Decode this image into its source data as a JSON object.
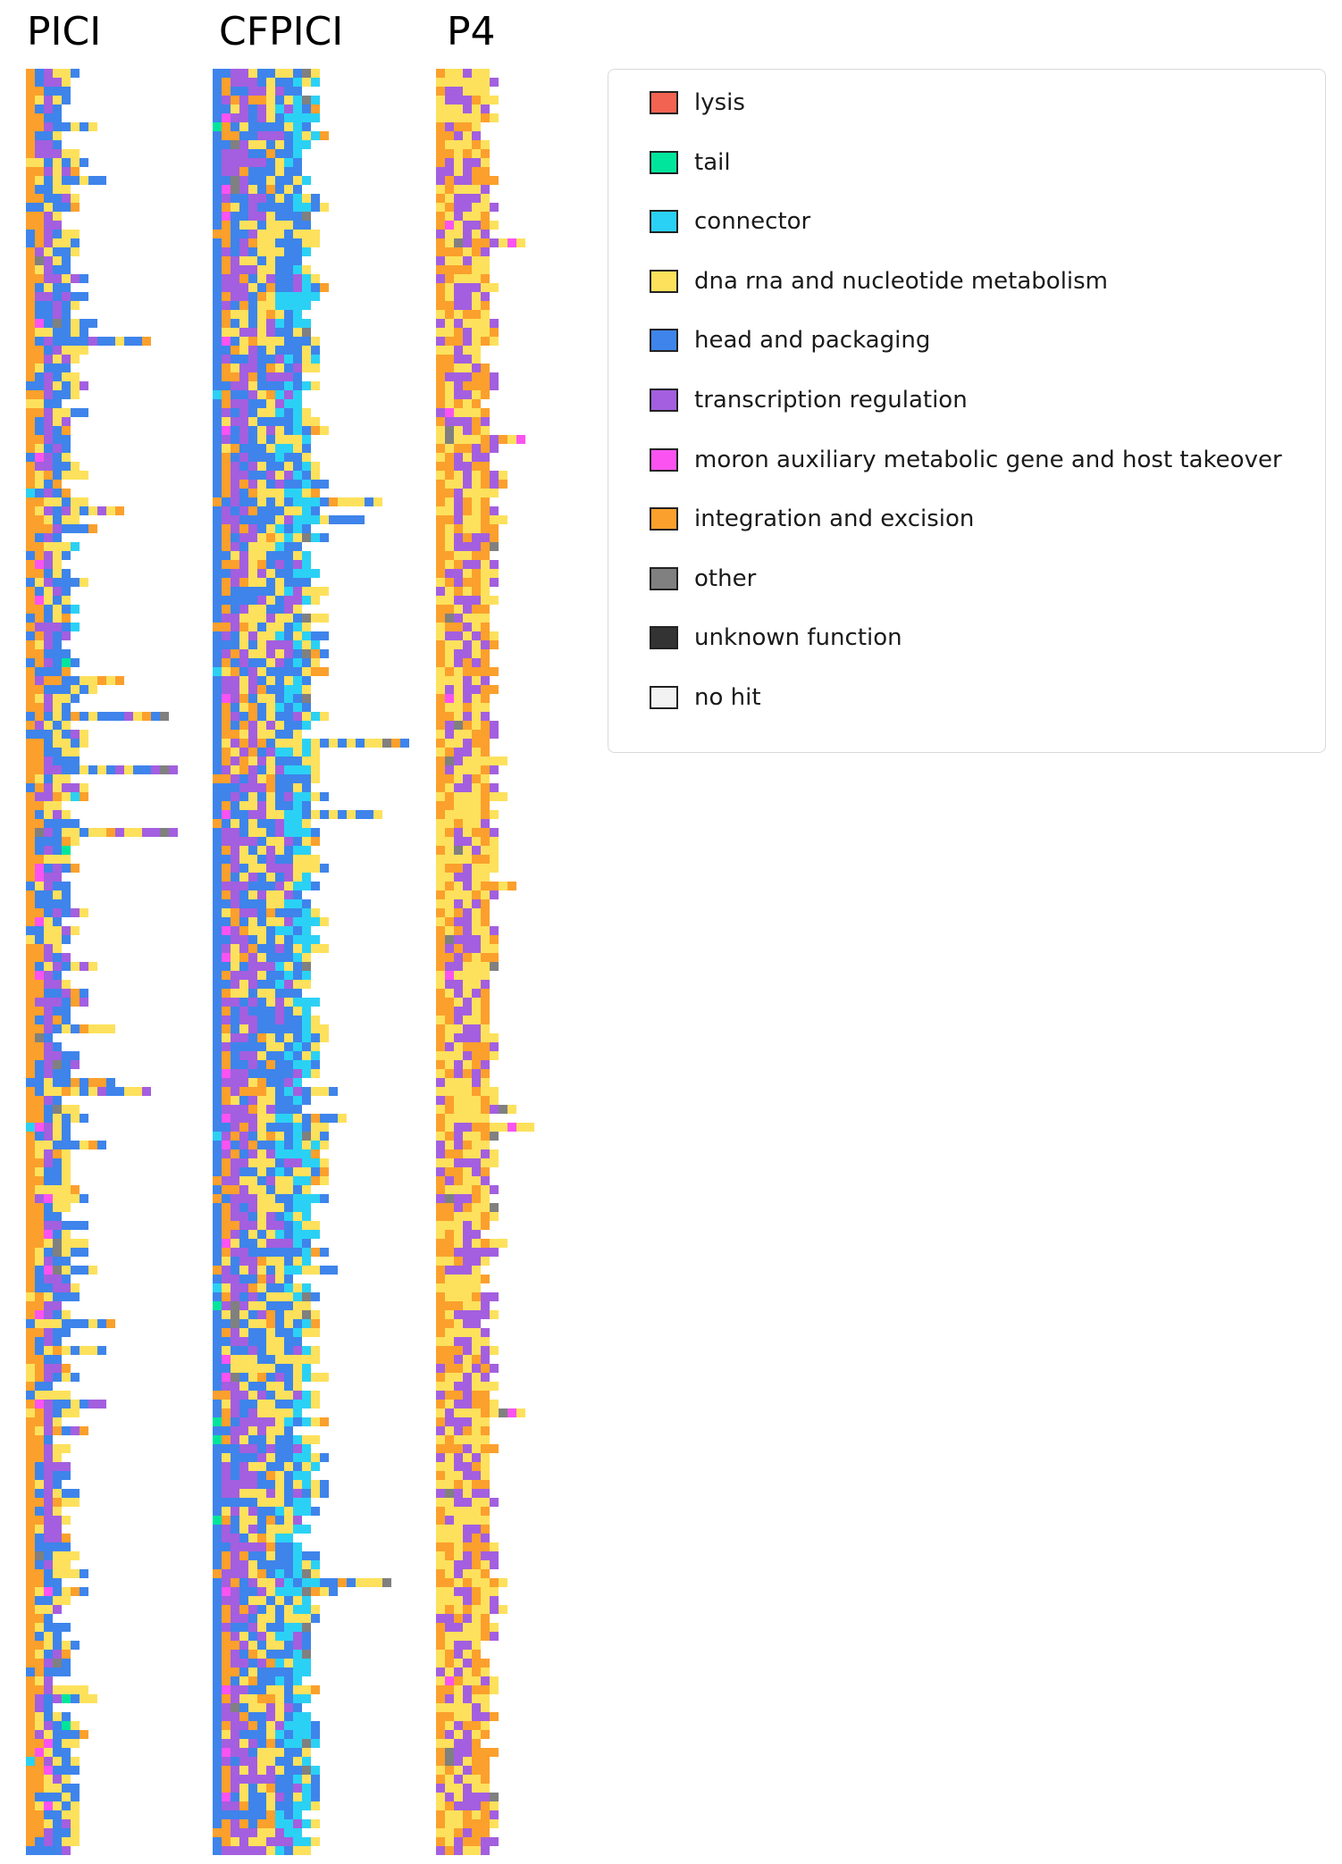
{
  "chart_data": [
    {
      "type": "heatmap",
      "title": "PICI",
      "row_count": 200,
      "max_genes": 18,
      "column_weights": [
        {
          "position": 1,
          "orange": 0.82,
          "blue": 0.12,
          "yellow": 0.04,
          "cyan": 0.02
        },
        {
          "position": 2,
          "orange": 0.35,
          "blue": 0.25,
          "yellow": 0.2,
          "purple": 0.12,
          "pink": 0.05,
          "gray": 0.03
        },
        {
          "position": 3,
          "purple": 0.4,
          "blue": 0.3,
          "yellow": 0.22,
          "orange": 0.04,
          "pink": 0.04
        },
        {
          "position": 4,
          "blue": 0.48,
          "yellow": 0.3,
          "purple": 0.14,
          "orange": 0.05,
          "gray": 0.03
        },
        {
          "position": 5,
          "blue": 0.45,
          "yellow": 0.35,
          "purple": 0.1,
          "orange": 0.06,
          "green": 0.04
        },
        {
          "position": 6,
          "yellow": 0.42,
          "blue": 0.38,
          "purple": 0.1,
          "orange": 0.06,
          "cyan": 0.04
        },
        {
          "position": 7,
          "blue": 0.45,
          "yellow": 0.35,
          "purple": 0.1,
          "orange": 0.1
        },
        {
          "position": 8,
          "yellow": 0.4,
          "blue": 0.35,
          "purple": 0.15,
          "orange": 0.1
        },
        {
          "position": 9,
          "yellow": 0.4,
          "blue": 0.3,
          "purple": 0.15,
          "orange": 0.15
        },
        {
          "position": 10,
          "yellow": 0.4,
          "blue": 0.3,
          "orange": 0.2,
          "gray": 0.1
        },
        {
          "position": 11,
          "yellow": 0.4,
          "orange": 0.3,
          "blue": 0.2,
          "purple": 0.1
        },
        {
          "position": 12,
          "yellow": 0.4,
          "blue": 0.3,
          "orange": 0.2,
          "purple": 0.1
        },
        {
          "position": 13,
          "yellow": 0.4,
          "blue": 0.3,
          "orange": 0.2,
          "purple": 0.1
        },
        {
          "position": 14,
          "blue": 0.4,
          "yellow": 0.3,
          "purple": 0.15,
          "orange": 0.15
        },
        {
          "position": 15,
          "purple": 0.4,
          "blue": 0.3,
          "yellow": 0.3
        },
        {
          "position": 16,
          "red": 0.5,
          "gray": 0.5
        },
        {
          "position": 17,
          "purple": 0.5,
          "blue": 0.5
        },
        {
          "position": 18,
          "blue": 1.0
        }
      ],
      "length_distribution": {
        "min": 3,
        "typical_max": 8,
        "mode": 5,
        "long_tail_rows": 14
      }
    },
    {
      "type": "heatmap",
      "title": "CFPICI",
      "row_count": 200,
      "max_genes": 22,
      "column_weights": [
        {
          "position": 1,
          "blue": 0.9,
          "orange": 0.05,
          "cyan": 0.03,
          "green": 0.02
        },
        {
          "position": 2,
          "orange": 0.4,
          "purple": 0.25,
          "blue": 0.15,
          "pink": 0.1,
          "yellow": 0.1
        },
        {
          "position": 3,
          "purple": 0.45,
          "blue": 0.25,
          "yellow": 0.15,
          "orange": 0.1,
          "gray": 0.05
        },
        {
          "position": 4,
          "purple": 0.4,
          "blue": 0.3,
          "yellow": 0.2,
          "orange": 0.1
        },
        {
          "position": 5,
          "purple": 0.35,
          "yellow": 0.25,
          "blue": 0.3,
          "orange": 0.1
        },
        {
          "position": 6,
          "blue": 0.4,
          "yellow": 0.35,
          "purple": 0.15,
          "orange": 0.1
        },
        {
          "position": 7,
          "yellow": 0.45,
          "blue": 0.3,
          "purple": 0.15,
          "orange": 0.1
        },
        {
          "position": 8,
          "blue": 0.45,
          "yellow": 0.3,
          "cyan": 0.15,
          "purple": 0.1
        },
        {
          "position": 9,
          "blue": 0.5,
          "cyan": 0.2,
          "yellow": 0.2,
          "purple": 0.1
        },
        {
          "position": 10,
          "cyan": 0.45,
          "blue": 0.25,
          "yellow": 0.2,
          "purple": 0.1
        },
        {
          "position": 11,
          "cyan": 0.45,
          "yellow": 0.25,
          "blue": 0.2,
          "gray": 0.1
        },
        {
          "position": 12,
          "yellow": 0.4,
          "cyan": 0.3,
          "blue": 0.2,
          "orange": 0.1
        },
        {
          "position": 13,
          "yellow": 0.45,
          "blue": 0.4,
          "orange": 0.15
        },
        {
          "position": 14,
          "blue": 0.5,
          "yellow": 0.3,
          "orange": 0.2
        },
        {
          "position": 15,
          "blue": 0.4,
          "yellow": 0.4,
          "orange": 0.2
        },
        {
          "position": 16,
          "yellow": 0.5,
          "pink": 0.25,
          "blue": 0.25
        },
        {
          "position": 17,
          "yellow": 0.5,
          "orange": 0.25,
          "blue": 0.25
        },
        {
          "position": 18,
          "yellow": 0.5,
          "blue": 0.5
        },
        {
          "position": 19,
          "yellow": 1.0
        },
        {
          "position": 20,
          "gray": 1.0
        },
        {
          "position": 21,
          "orange": 1.0
        },
        {
          "position": 22,
          "blue": 1.0
        }
      ],
      "length_distribution": {
        "min": 9,
        "typical_max": 14,
        "mode": 12,
        "long_tail_rows": 8
      }
    },
    {
      "type": "heatmap",
      "title": "P4",
      "row_count": 200,
      "max_genes": 12,
      "column_weights": [
        {
          "position": 1,
          "orange": 0.55,
          "yellow": 0.35,
          "purple": 0.1
        },
        {
          "position": 2,
          "yellow": 0.5,
          "orange": 0.3,
          "purple": 0.15,
          "gray": 0.03,
          "pink": 0.02
        },
        {
          "position": 3,
          "yellow": 0.45,
          "purple": 0.35,
          "orange": 0.15,
          "gray": 0.05
        },
        {
          "position": 4,
          "purple": 0.5,
          "yellow": 0.35,
          "orange": 0.15
        },
        {
          "position": 5,
          "yellow": 0.5,
          "orange": 0.3,
          "purple": 0.2
        },
        {
          "position": 6,
          "orange": 0.45,
          "yellow": 0.3,
          "purple": 0.25
        },
        {
          "position": 7,
          "purple": 0.45,
          "yellow": 0.35,
          "orange": 0.15,
          "gray": 0.05
        },
        {
          "position": 8,
          "yellow": 0.45,
          "orange": 0.25,
          "purple": 0.15,
          "gray": 0.15
        },
        {
          "position": 9,
          "yellow": 0.45,
          "orange": 0.3,
          "gray": 0.15,
          "pink": 0.1
        },
        {
          "position": 10,
          "yellow": 0.4,
          "orange": 0.3,
          "pink": 0.15,
          "green": 0.15
        },
        {
          "position": 11,
          "yellow": 0.5,
          "pink": 0.25,
          "orange": 0.25
        },
        {
          "position": 12,
          "purple": 0.5,
          "orange": 0.5
        }
      ],
      "length_distribution": {
        "min": 5,
        "typical_max": 8,
        "mode": 7,
        "long_tail_rows": 10
      }
    }
  ],
  "legend": {
    "placement": "top-right",
    "entries": [
      {
        "label": "lysis",
        "color": "#F26351"
      },
      {
        "label": "tail",
        "color": "#00E59C"
      },
      {
        "label": "connector",
        "color": "#2BD1F5"
      },
      {
        "label": "dna rna and nucleotide metabolism",
        "color": "#FDE15C"
      },
      {
        "label": "head and packaging",
        "color": "#3E84EB"
      },
      {
        "label": "transcription regulation",
        "color": "#A35FDF"
      },
      {
        "label": "moron auxiliary metabolic gene and host takeover",
        "color": "#FB53F1"
      },
      {
        "label": "integration and excision",
        "color": "#FBA02C"
      },
      {
        "label": "other",
        "color": "#808080"
      },
      {
        "label": "unknown function",
        "color": "#333333"
      },
      {
        "label": "no hit",
        "color": "#F2F2F2"
      }
    ]
  },
  "color_keys": {
    "red": "#F26351",
    "green": "#00E59C",
    "cyan": "#2BD1F5",
    "yellow": "#FDE15C",
    "blue": "#3E84EB",
    "purple": "#A35FDF",
    "pink": "#FB53F1",
    "orange": "#FBA02C",
    "gray": "#808080",
    "dark": "#333333",
    "nohit": "#F2F2F2"
  }
}
